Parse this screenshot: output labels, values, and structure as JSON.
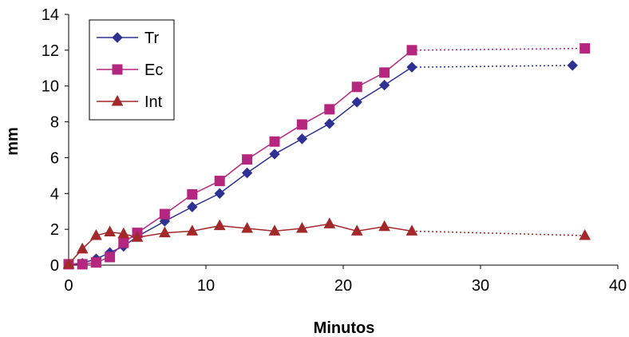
{
  "chart_data": {
    "type": "line",
    "title": "",
    "xlabel": "Minutos",
    "ylabel": "mm",
    "xlim": [
      0,
      40
    ],
    "ylim": [
      0,
      14
    ],
    "xticks": [
      0,
      10,
      20,
      30,
      40
    ],
    "yticks": [
      0,
      2,
      4,
      6,
      8,
      10,
      12,
      14
    ],
    "grid": false,
    "legend_position": "top-left",
    "series": [
      {
        "name": "Tr",
        "color": "#2e3192",
        "marker": "diamond",
        "x": [
          0,
          1,
          2,
          3,
          4,
          5,
          7,
          9,
          11,
          13,
          15,
          17,
          19,
          21,
          23,
          25,
          36.7
        ],
        "values": [
          0.05,
          0.1,
          0.35,
          0.7,
          1.05,
          1.6,
          2.45,
          3.25,
          4.0,
          5.15,
          6.2,
          7.05,
          7.9,
          9.1,
          10.05,
          11.05,
          11.15
        ],
        "dotted_from_index": 15
      },
      {
        "name": "Ec",
        "color": "#b5267e",
        "marker": "square",
        "x": [
          0,
          1,
          2,
          3,
          4,
          5,
          7,
          9,
          11,
          13,
          15,
          17,
          19,
          21,
          23,
          25,
          37.6
        ],
        "values": [
          0.05,
          0.05,
          0.15,
          0.45,
          1.25,
          1.8,
          2.85,
          3.95,
          4.7,
          5.9,
          6.9,
          7.85,
          8.7,
          9.95,
          10.75,
          12.0,
          12.1
        ],
        "dotted_from_index": 15
      },
      {
        "name": "Int",
        "color": "#a2282a",
        "marker": "triangle",
        "x": [
          0,
          1,
          2,
          3,
          4,
          5,
          7,
          9,
          11,
          13,
          15,
          17,
          19,
          21,
          23,
          25,
          37.6
        ],
        "values": [
          0.05,
          0.9,
          1.65,
          1.85,
          1.75,
          1.55,
          1.8,
          1.9,
          2.2,
          2.05,
          1.9,
          2.05,
          2.3,
          1.9,
          2.15,
          1.9,
          1.65
        ],
        "dotted_from_index": 15
      }
    ]
  }
}
